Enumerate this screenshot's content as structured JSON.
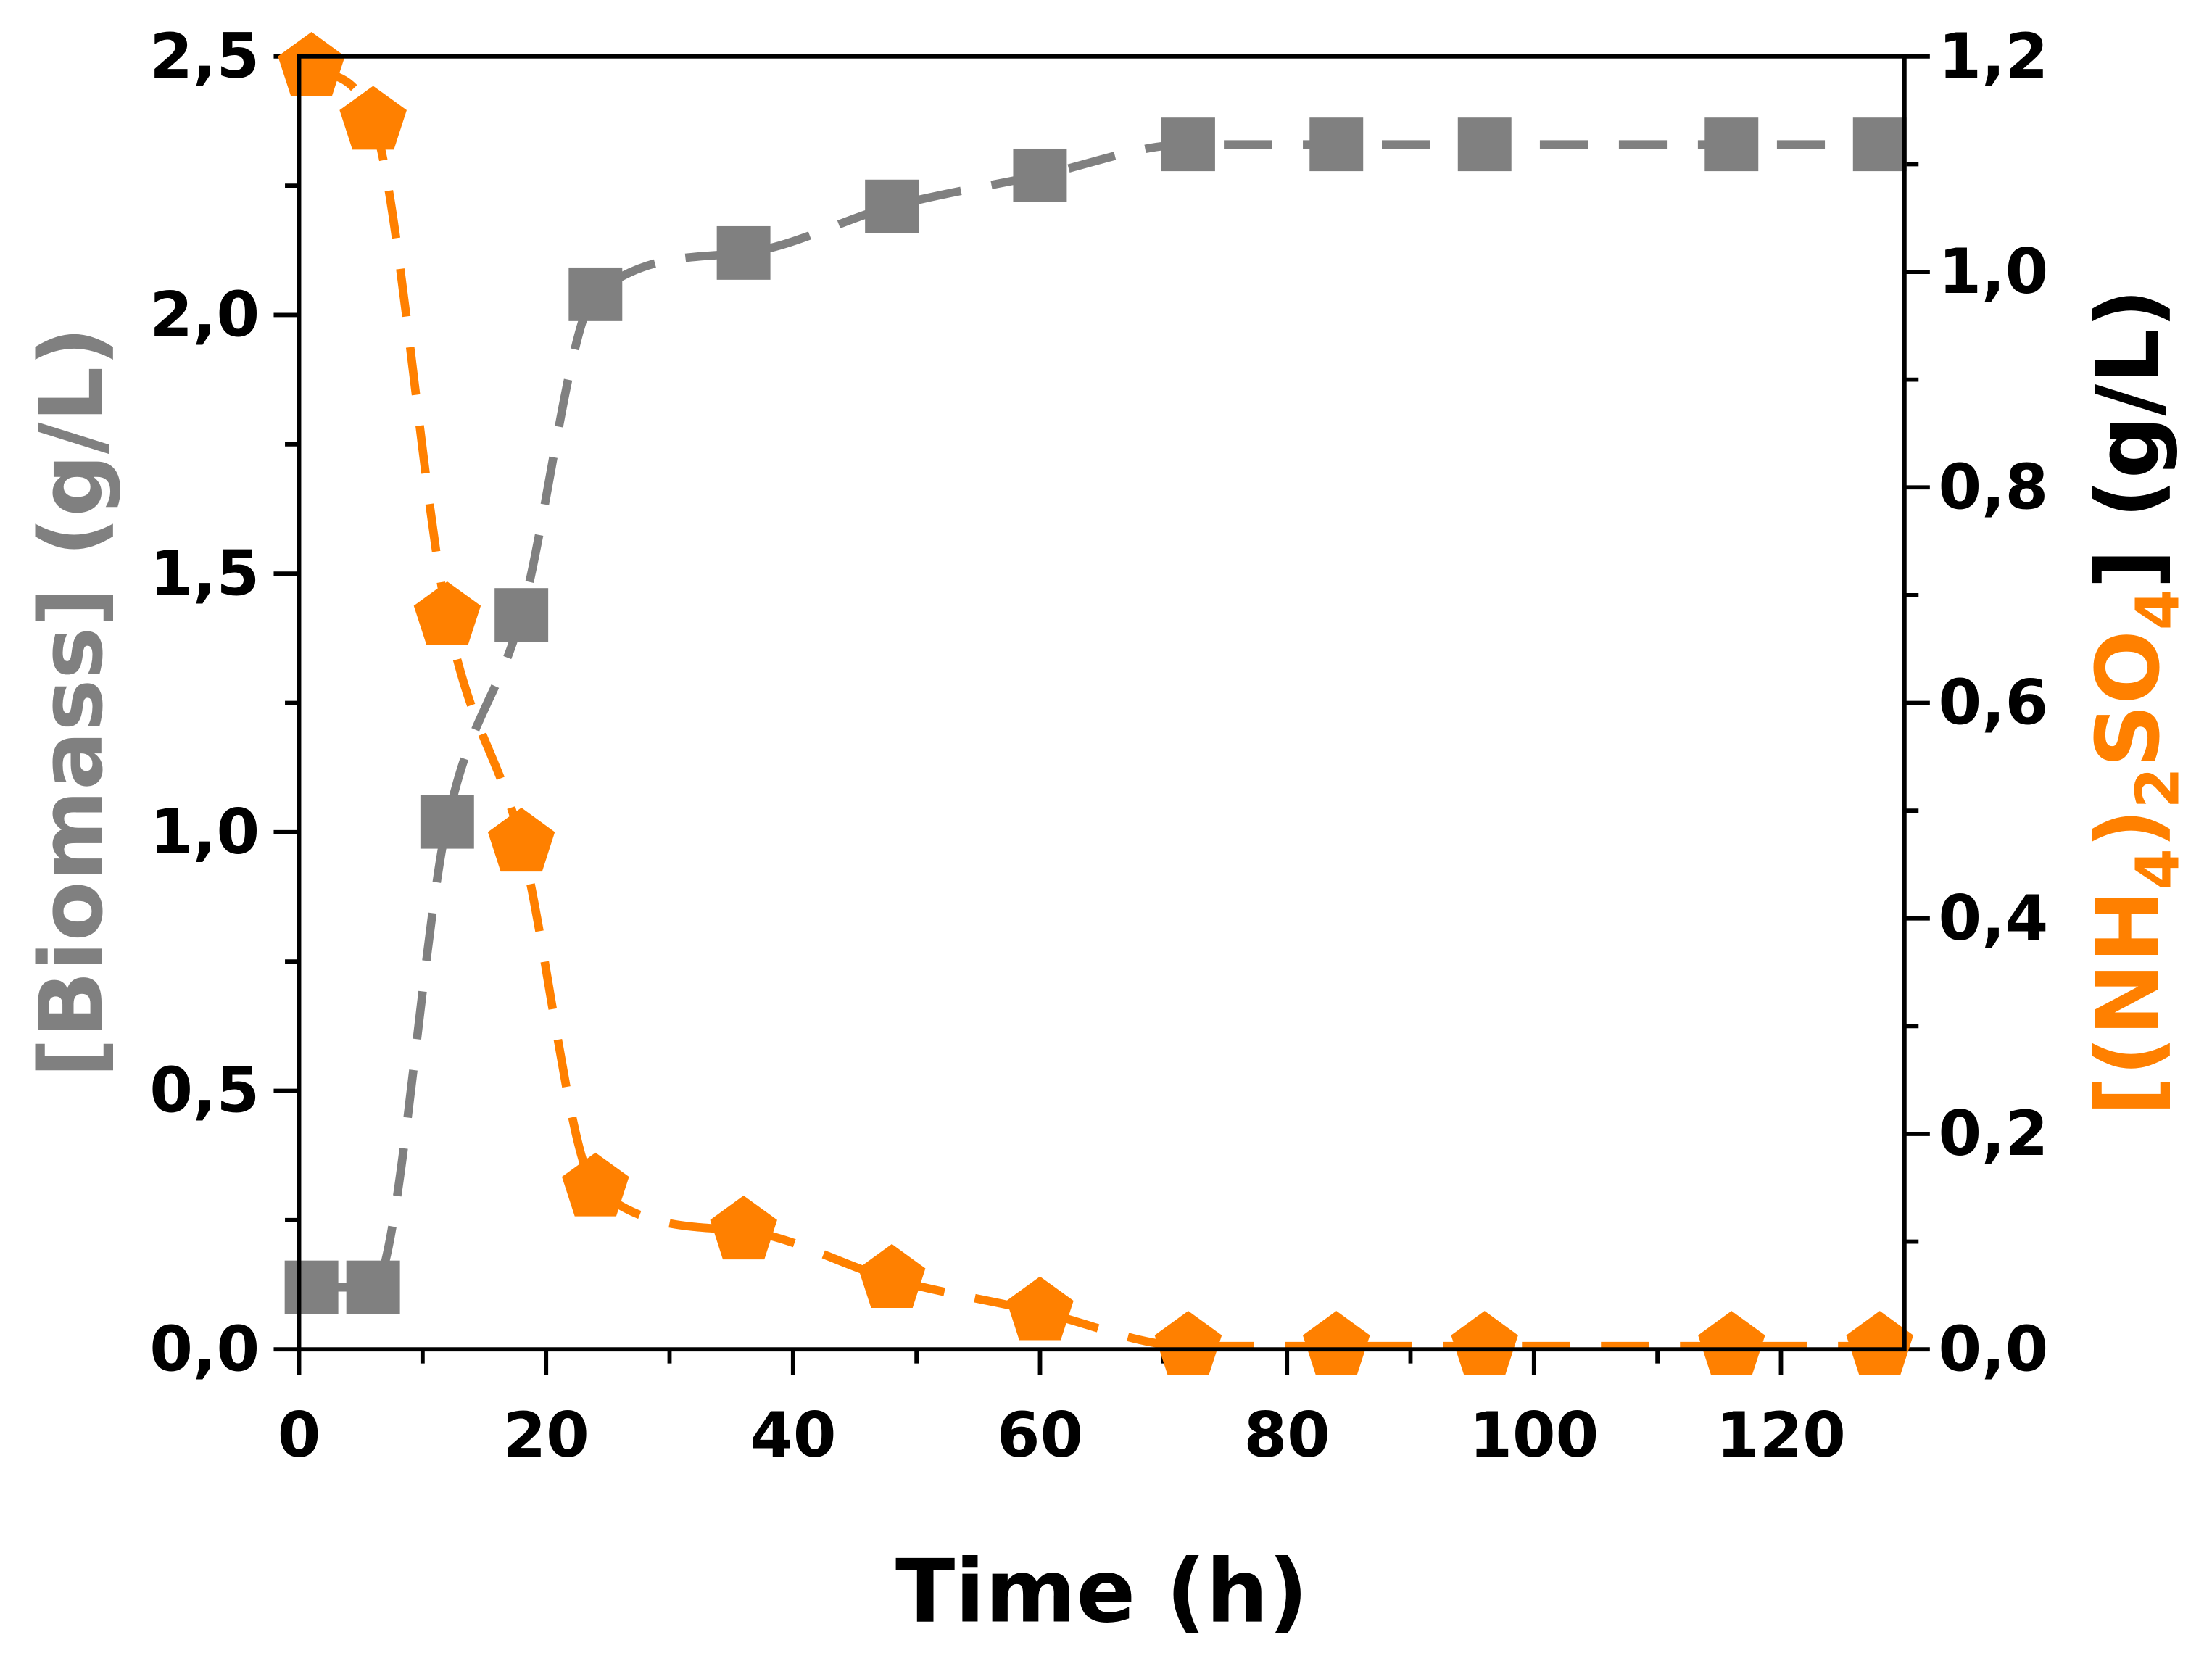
{
  "chart_data": {
    "type": "scatter",
    "title": "",
    "xlabel": "Time (h)",
    "ylabel": "[Biomass] (g/L)",
    "y2label": {
      "open": "[(NH",
      "sub1": "4",
      "mid": ")",
      "sub2": "2",
      "so": "SO",
      "sub3": "4",
      "close": "] (g/L)"
    },
    "xlim": [
      0,
      130
    ],
    "ylim": [
      0,
      2.5
    ],
    "y2lim": [
      0,
      1.2
    ],
    "x_ticks": [
      0,
      20,
      40,
      60,
      80,
      100,
      120
    ],
    "x_tick_labels": [
      "0",
      "20",
      "40",
      "60",
      "80",
      "100",
      "120"
    ],
    "y_ticks": [
      0,
      0.5,
      1.0,
      1.5,
      2.0,
      2.5
    ],
    "y_tick_labels": [
      "0,0",
      "0,5",
      "1,0",
      "1,5",
      "2,0",
      "2,5"
    ],
    "y2_ticks": [
      0,
      0.2,
      0.4,
      0.6,
      0.8,
      1.0,
      1.2
    ],
    "y2_tick_labels": [
      "0,0",
      "0,2",
      "0,4",
      "0,6",
      "0,8",
      "1,0",
      "1,2"
    ],
    "colors": {
      "biomass": "#808080",
      "ammonium": "#FF8000"
    },
    "series": [
      {
        "name": "Biomass",
        "axis": "left",
        "marker": "square",
        "line": "dashed",
        "x": [
          1,
          6,
          12,
          18,
          24,
          36,
          48,
          60,
          72,
          84,
          96,
          116,
          128
        ],
        "values": [
          0.12,
          0.12,
          1.02,
          1.42,
          2.04,
          2.12,
          2.21,
          2.27,
          2.33,
          2.33,
          2.33,
          2.33,
          2.33
        ]
      },
      {
        "name": "(NH4)2SO4",
        "axis": "right",
        "marker": "pentagon",
        "line": "dashed",
        "x": [
          1,
          6,
          12,
          18,
          24,
          36,
          48,
          60,
          72,
          84,
          96,
          116,
          128
        ],
        "values": [
          1.19,
          1.14,
          0.68,
          0.47,
          0.15,
          0.11,
          0.065,
          0.035,
          0.003,
          0.003,
          0.003,
          0.003,
          0.003
        ]
      }
    ]
  }
}
